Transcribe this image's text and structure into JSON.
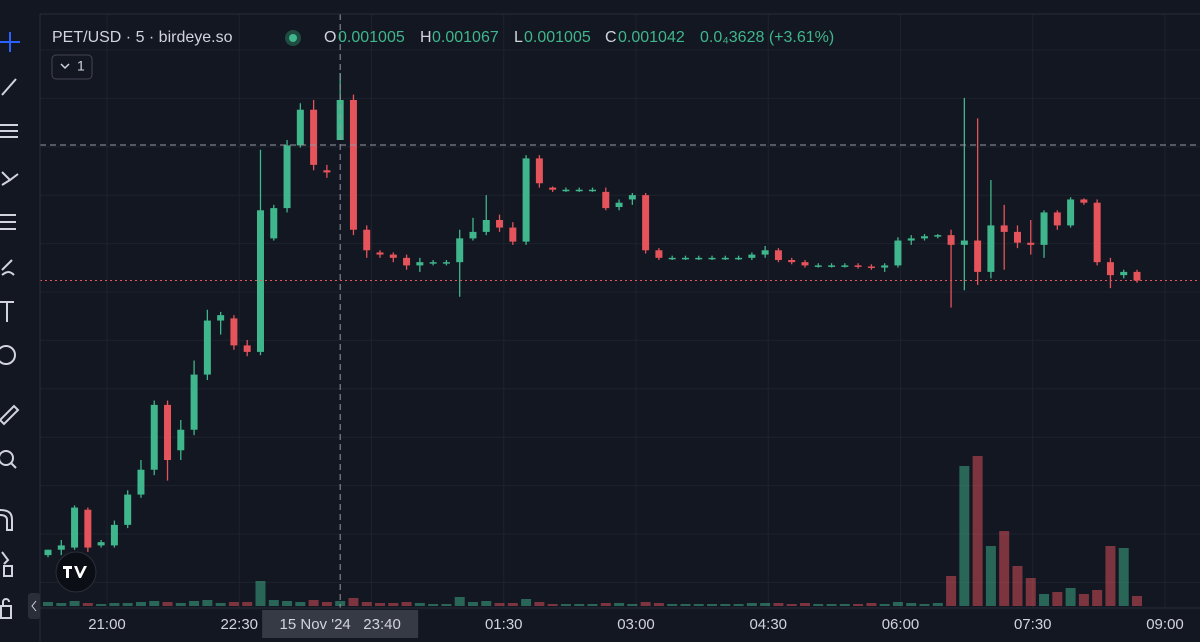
{
  "header": {
    "symbol": "PET/USD · 5 · birdeye.so",
    "open_label": "O",
    "open": "0.001005",
    "high_label": "H",
    "high": "0.001067",
    "low_label": "L",
    "low": "0.001005",
    "close_label": "C",
    "close": "0.001042",
    "change": "0.0₄3628 (+3.61%)",
    "indicator_count": "1"
  },
  "chart_data": {
    "type": "candlestick",
    "candles": [
      [
        0.000621,
        0.000626,
        0.000619,
        0.000626
      ],
      [
        0.000626,
        0.000635,
        0.000621,
        0.00063
      ],
      [
        0.000628,
        0.000667,
        0.000626,
        0.000665
      ],
      [
        0.000663,
        0.000665,
        0.000624,
        0.000628
      ],
      [
        0.00063,
        0.000635,
        0.000628,
        0.000633
      ],
      [
        0.00063,
        0.000653,
        0.000628,
        0.000649
      ],
      [
        0.000649,
        0.000681,
        0.000646,
        0.000677
      ],
      [
        0.000677,
        0.000709,
        0.000674,
        0.0007
      ],
      [
        0.0007,
        0.000764,
        0.000695,
        0.00076
      ],
      [
        0.00076,
        0.000764,
        0.00069,
        0.000709
      ],
      [
        0.000718,
        0.000746,
        0.000709,
        0.000737
      ],
      [
        0.000737,
        0.000801,
        0.000732,
        0.000788
      ],
      [
        0.000788,
        0.000848,
        0.000783,
        0.000838
      ],
      [
        0.000838,
        0.000846,
        0.000825,
        0.000843
      ],
      [
        0.00084,
        0.000843,
        0.000811,
        0.000815
      ],
      [
        0.000815,
        0.00082,
        0.000805,
        0.000809
      ],
      [
        0.000809,
        0.000996,
        0.000806,
        0.00094
      ],
      [
        0.000914,
        0.000945,
        0.000912,
        0.000942
      ],
      [
        0.000942,
        0.001005,
        0.000938,
        0.001
      ],
      [
        0.001,
        0.001039,
        0.000998,
        0.001033
      ],
      [
        0.001033,
        0.001042,
        0.000977,
        0.000982
      ],
      [
        0.000977,
        0.000982,
        0.00097,
        0.000975
      ],
      [
        0.001005,
        0.001067,
        0.001005,
        0.001042
      ],
      [
        0.001042,
        0.001047,
        0.000917,
        0.000922
      ],
      [
        0.000922,
        0.000926,
        0.000896,
        0.000903
      ],
      [
        0.000901,
        0.000903,
        0.000896,
        0.000899
      ],
      [
        0.000899,
        0.000901,
        0.000892,
        0.000896
      ],
      [
        0.000896,
        0.000899,
        0.000885,
        0.000889
      ],
      [
        0.000889,
        0.000896,
        0.000883,
        0.000892
      ],
      [
        0.000892,
        0.000894,
        0.000889,
        0.000892
      ],
      [
        0.000891,
        0.000894,
        0.000889,
        0.000892
      ],
      [
        0.000892,
        0.000922,
        0.00086,
        0.000914
      ],
      [
        0.000914,
        0.000933,
        0.000912,
        0.00092
      ],
      [
        0.00092,
        0.000954,
        0.000917,
        0.000931
      ],
      [
        0.000931,
        0.000936,
        0.00092,
        0.000924
      ],
      [
        0.000924,
        0.000929,
        0.000908,
        0.000911
      ],
      [
        0.000911,
        0.000991,
        0.000908,
        0.000988
      ],
      [
        0.000988,
        0.000991,
        0.000961,
        0.000965
      ],
      [
        0.000961,
        0.000962,
        0.000957,
        0.000959
      ],
      [
        0.000959,
        0.000961,
        0.000957,
        0.000959
      ],
      [
        0.000959,
        0.000961,
        0.000957,
        0.000959
      ],
      [
        0.000959,
        0.000961,
        0.000957,
        0.000959
      ],
      [
        0.000957,
        0.000961,
        0.00094,
        0.000942
      ],
      [
        0.000943,
        0.00095,
        0.00094,
        0.000947
      ],
      [
        0.00095,
        0.000956,
        0.000945,
        0.000954
      ],
      [
        0.000954,
        0.000956,
        0.0009,
        0.000903
      ],
      [
        0.000903,
        0.000905,
        0.000894,
        0.000896
      ],
      [
        0.000896,
        0.000898,
        0.000894,
        0.000896
      ],
      [
        0.000896,
        0.000898,
        0.000894,
        0.000896
      ],
      [
        0.000896,
        0.000898,
        0.000894,
        0.000896
      ],
      [
        0.000896,
        0.000898,
        0.000894,
        0.000896
      ],
      [
        0.000896,
        0.000898,
        0.000894,
        0.000896
      ],
      [
        0.000896,
        0.000898,
        0.000894,
        0.000896
      ],
      [
        0.000896,
        0.000901,
        0.000894,
        0.000899
      ],
      [
        0.000899,
        0.000907,
        0.000896,
        0.000903
      ],
      [
        0.000903,
        0.000905,
        0.000892,
        0.000894
      ],
      [
        0.000894,
        0.000896,
        0.00089,
        0.000892
      ],
      [
        0.000892,
        0.000894,
        0.000887,
        0.000889
      ],
      [
        0.000889,
        0.000891,
        0.000887,
        0.000889
      ],
      [
        0.000889,
        0.000891,
        0.000887,
        0.000889
      ],
      [
        0.000889,
        0.000891,
        0.000887,
        0.000889
      ],
      [
        0.000889,
        0.000891,
        0.000886,
        0.000888
      ],
      [
        0.000888,
        0.00089,
        0.000885,
        0.000887
      ],
      [
        0.000887,
        0.000891,
        0.000883,
        0.000889
      ],
      [
        0.000889,
        0.000915,
        0.000887,
        0.000912
      ],
      [
        0.000912,
        0.000917,
        0.000908,
        0.000914
      ],
      [
        0.000914,
        0.000918,
        0.000912,
        0.000916
      ],
      [
        0.000916,
        0.000918,
        0.000914,
        0.000917
      ],
      [
        0.000917,
        0.000922,
        0.00085,
        0.000908
      ],
      [
        0.000908,
        0.001044,
        0.000866,
        0.000912
      ],
      [
        0.000912,
        0.001025,
        0.000871,
        0.000883
      ],
      [
        0.000883,
        0.000968,
        0.000877,
        0.000926
      ],
      [
        0.000926,
        0.000945,
        0.000885,
        0.00092
      ],
      [
        0.00092,
        0.000926,
        0.000905,
        0.00091
      ],
      [
        0.00091,
        0.000931,
        0.000899,
        0.000908
      ],
      [
        0.000908,
        0.00094,
        0.000896,
        0.000938
      ],
      [
        0.000938,
        0.00094,
        0.000922,
        0.000926
      ],
      [
        0.000926,
        0.000952,
        0.000924,
        0.00095
      ],
      [
        0.00095,
        0.000951,
        0.000945,
        0.000947
      ],
      [
        0.000947,
        0.00095,
        0.000889,
        0.000892
      ],
      [
        0.000892,
        0.000896,
        0.000868,
        0.00088
      ],
      [
        0.00088,
        0.000885,
        0.000877,
        0.000883
      ],
      [
        0.000883,
        0.000885,
        0.000873,
        0.000875
      ]
    ],
    "volume": [
      4,
      3,
      5,
      3,
      2,
      3,
      3,
      4,
      5,
      4,
      3,
      5,
      6,
      3,
      4,
      4,
      25,
      6,
      5,
      4,
      6,
      4,
      5,
      8,
      4,
      3,
      3,
      4,
      3,
      2,
      2,
      9,
      4,
      5,
      3,
      3,
      7,
      4,
      2,
      2,
      2,
      2,
      3,
      3,
      2,
      4,
      3,
      2,
      2,
      2,
      2,
      2,
      2,
      3,
      3,
      3,
      2,
      3,
      2,
      2,
      2,
      2,
      3,
      2,
      4,
      3,
      2,
      3,
      30,
      140,
      150,
      60,
      75,
      40,
      28,
      12,
      14,
      18,
      12,
      16,
      60,
      58,
      10
    ],
    "up_color": "#3fb68b",
    "down_color": "#e5535b",
    "grid": true,
    "time_ticks": [
      "21:00",
      "22:30",
      null,
      "01:30",
      "03:00",
      "04:30",
      "06:00",
      "07:30",
      "09:00"
    ],
    "crosshair_label": "15 Nov '24   23:40"
  }
}
